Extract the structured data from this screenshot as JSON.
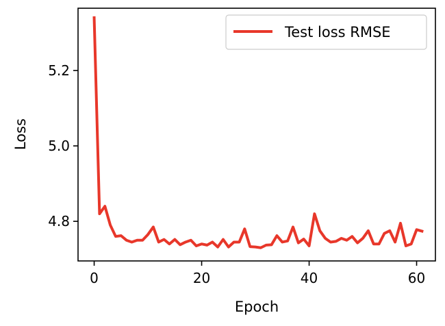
{
  "chart_data": {
    "type": "line",
    "xlabel": "Epoch",
    "ylabel": "Loss",
    "xlim": [
      -3,
      63.5
    ],
    "ylim": [
      4.695,
      5.365
    ],
    "xticks": [
      0,
      20,
      40,
      60
    ],
    "xtick_labels": [
      "0",
      "20",
      "40",
      "60"
    ],
    "yticks": [
      4.8,
      5.0,
      5.2
    ],
    "ytick_labels": [
      "4.8",
      "5.0",
      "5.2"
    ],
    "grid": false,
    "legend": "top-right",
    "series": [
      {
        "name": "Test loss RMSE",
        "color": "#e8372a",
        "x": [
          0,
          1,
          2,
          3,
          4,
          5,
          6,
          7,
          8,
          9,
          10,
          11,
          12,
          13,
          14,
          15,
          16,
          17,
          18,
          19,
          20,
          21,
          22,
          23,
          24,
          25,
          26,
          27,
          28,
          29,
          30,
          31,
          32,
          33,
          34,
          35,
          36,
          37,
          38,
          39,
          40,
          41,
          42,
          43,
          44,
          45,
          46,
          47,
          48,
          49,
          50,
          51,
          52,
          53,
          54,
          55,
          56,
          57,
          58,
          59,
          60,
          61
        ],
        "y": [
          5.34,
          4.82,
          4.84,
          4.79,
          4.76,
          4.762,
          4.75,
          4.745,
          4.75,
          4.75,
          4.765,
          4.785,
          4.745,
          4.752,
          4.74,
          4.752,
          4.738,
          4.745,
          4.75,
          4.735,
          4.74,
          4.737,
          4.745,
          4.732,
          4.752,
          4.732,
          4.745,
          4.745,
          4.78,
          4.733,
          4.732,
          4.73,
          4.737,
          4.738,
          4.762,
          4.745,
          4.748,
          4.785,
          4.743,
          4.753,
          4.735,
          4.82,
          4.775,
          4.755,
          4.745,
          4.747,
          4.755,
          4.75,
          4.76,
          4.743,
          4.755,
          4.775,
          4.74,
          4.74,
          4.768,
          4.775,
          4.745,
          4.795,
          4.735,
          4.74,
          4.778,
          4.774
        ]
      }
    ]
  }
}
